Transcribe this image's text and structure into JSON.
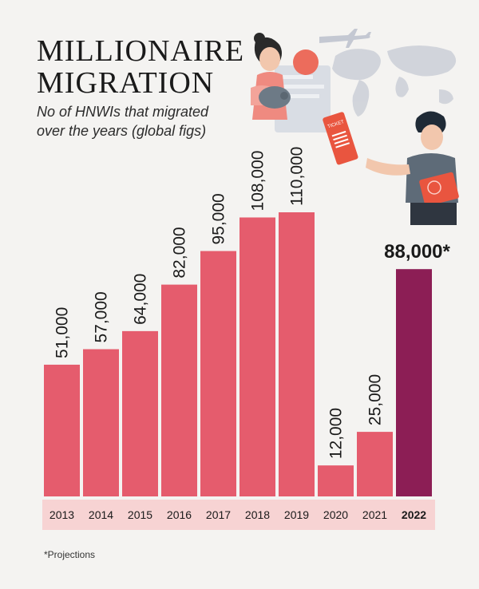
{
  "header": {
    "title_line1": "MILLIONAIRE",
    "title_line2": "MIGRATION",
    "subtitle": "No of HNWIs that migrated over the years (global figs)"
  },
  "illustration": {
    "ticket_text": "TICKET"
  },
  "footnote": "*Projections",
  "colors": {
    "bar": "#e55c6d",
    "highlight_bar": "#8c1e55",
    "background": "#f4f3f1",
    "axis_strip": "#f7d3d3"
  },
  "chart_data": {
    "type": "bar",
    "categories": [
      "2013",
      "2014",
      "2015",
      "2016",
      "2017",
      "2018",
      "2019",
      "2020",
      "2021",
      "2022"
    ],
    "values": [
      51000,
      57000,
      64000,
      82000,
      95000,
      108000,
      110000,
      12000,
      25000,
      88000
    ],
    "value_labels": [
      "51,000",
      "57,000",
      "64,000",
      "82,000",
      "95,000",
      "108,000",
      "110,000",
      "12,000",
      "25,000",
      "88,000*"
    ],
    "highlight_index": 9,
    "title": "",
    "xlabel": "",
    "ylabel": "",
    "ylim": [
      0,
      110000
    ],
    "grid": false,
    "legend": "none"
  }
}
